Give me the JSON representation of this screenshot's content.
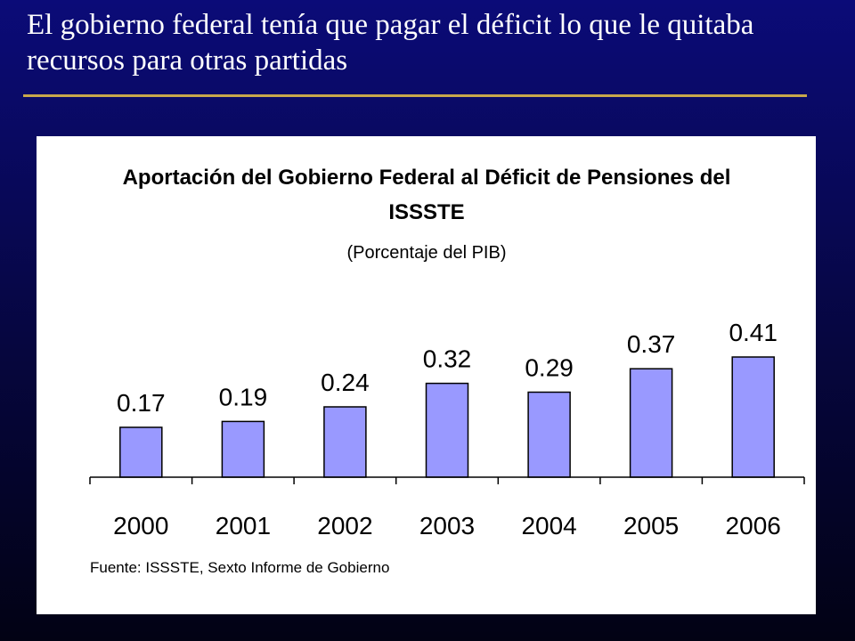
{
  "slide": {
    "title": "El gobierno federal tenía que pagar el déficit lo que le quitaba recursos para otras partidas"
  },
  "colors": {
    "background": "#0b0b78",
    "rule": "#c8a84b",
    "bar_fill": "#9999ff",
    "bar_stroke": "#000000"
  },
  "chart_data": {
    "type": "bar",
    "title_line1": "Aportación del Gobierno Federal al Déficit de Pensiones del",
    "title_line2": "ISSSTE",
    "subtitle": "(Porcentaje del PIB)",
    "categories": [
      "2000",
      "2001",
      "2002",
      "2003",
      "2004",
      "2005",
      "2006"
    ],
    "values": [
      0.17,
      0.19,
      0.24,
      0.32,
      0.29,
      0.37,
      0.41
    ],
    "value_labels": [
      "0.17",
      "0.19",
      "0.24",
      "0.32",
      "0.29",
      "0.37",
      "0.41"
    ],
    "xlabel": "",
    "ylabel": "",
    "ylim": [
      0,
      0.41
    ],
    "grid": false,
    "legend": "none",
    "source": "Fuente: ISSSTE, Sexto Informe de Gobierno"
  }
}
